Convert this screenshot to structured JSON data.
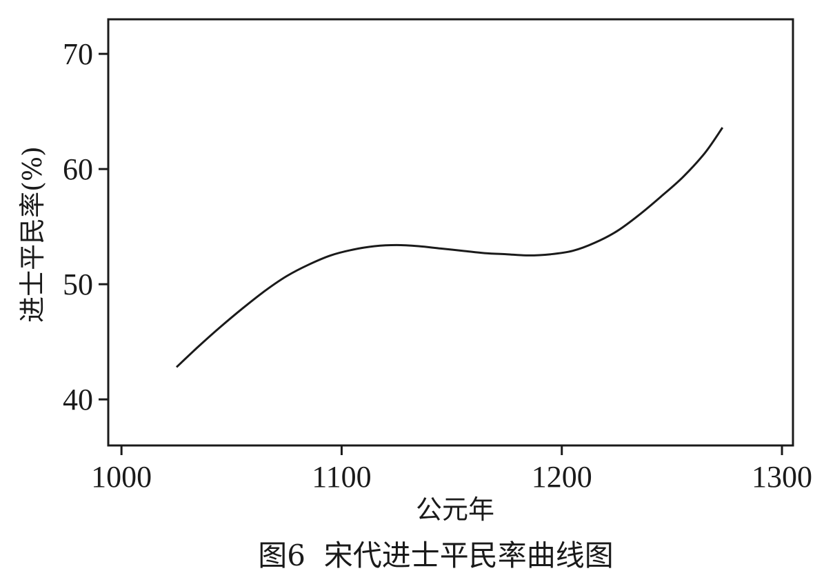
{
  "chart_data": {
    "type": "line",
    "caption": "图6  宋代进士平民率曲线图",
    "xlabel": "公元年",
    "ylabel": "进士平民率(%)",
    "xlim": [
      994,
      1305
    ],
    "ylim": [
      36,
      73
    ],
    "x_ticks": [
      1000,
      1100,
      1200,
      1300
    ],
    "y_ticks": [
      40,
      50,
      60,
      70
    ],
    "grid": false,
    "series": [
      {
        "color": "#1a1a1a",
        "x": [
          1025,
          1035,
          1045,
          1055,
          1065,
          1075,
          1085,
          1095,
          1105,
          1115,
          1125,
          1135,
          1145,
          1155,
          1165,
          1175,
          1185,
          1195,
          1205,
          1215,
          1225,
          1235,
          1245,
          1255,
          1265,
          1273
        ],
        "y": [
          42.8,
          44.6,
          46.3,
          47.9,
          49.4,
          50.7,
          51.7,
          52.5,
          53.0,
          53.3,
          53.4,
          53.3,
          53.1,
          52.9,
          52.7,
          52.6,
          52.5,
          52.6,
          52.9,
          53.6,
          54.6,
          56.0,
          57.6,
          59.3,
          61.4,
          63.6
        ]
      }
    ]
  }
}
